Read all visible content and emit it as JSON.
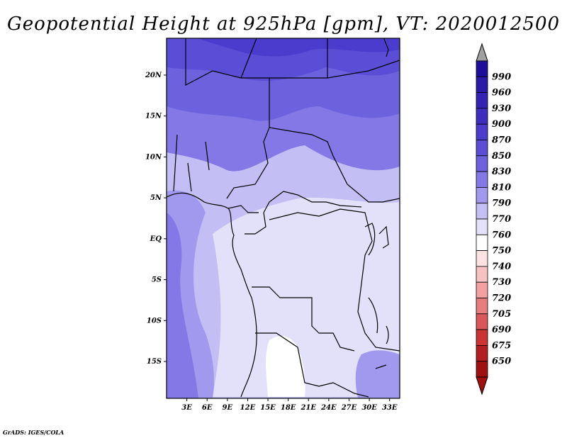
{
  "title": "Geopotential Height at 925hPa [gpm], VT: 2020012500",
  "credit": "GrADS: IGES/COLA",
  "map": {
    "lat_labels": [
      "20N",
      "15N",
      "10N",
      "5N",
      "EQ",
      "5S",
      "10S",
      "15S"
    ],
    "lat_values": [
      20,
      15,
      10,
      5,
      0,
      -5,
      -10,
      -15
    ],
    "lon_labels": [
      "3E",
      "6E",
      "9E",
      "12E",
      "15E",
      "18E",
      "21E",
      "24E",
      "27E",
      "30E",
      "33E"
    ],
    "lon_values": [
      3,
      6,
      9,
      12,
      15,
      18,
      21,
      24,
      27,
      30,
      33
    ],
    "lat_range": [
      -19.5,
      24.5
    ],
    "lon_range": [
      0,
      34.5
    ]
  },
  "colorbar": {
    "labels": [
      "990",
      "960",
      "930",
      "900",
      "870",
      "850",
      "830",
      "810",
      "790",
      "770",
      "760",
      "750",
      "740",
      "730",
      "720",
      "705",
      "690",
      "675",
      "650"
    ],
    "colors": [
      "#1c0f9c",
      "#2a1aa8",
      "#3322b4",
      "#3d2ec0",
      "#4a3ccc",
      "#5a4ed6",
      "#6c62de",
      "#8378e6",
      "#a199ee",
      "#c3bef4",
      "#e3e1fa",
      "#ffffff",
      "#fde2e2",
      "#f9c2c2",
      "#f2a0a0",
      "#e87d7d",
      "#dc5858",
      "#cc3434",
      "#b51e1e",
      "#a11010"
    ],
    "top_arrow_color": "#a0a0a0"
  }
}
